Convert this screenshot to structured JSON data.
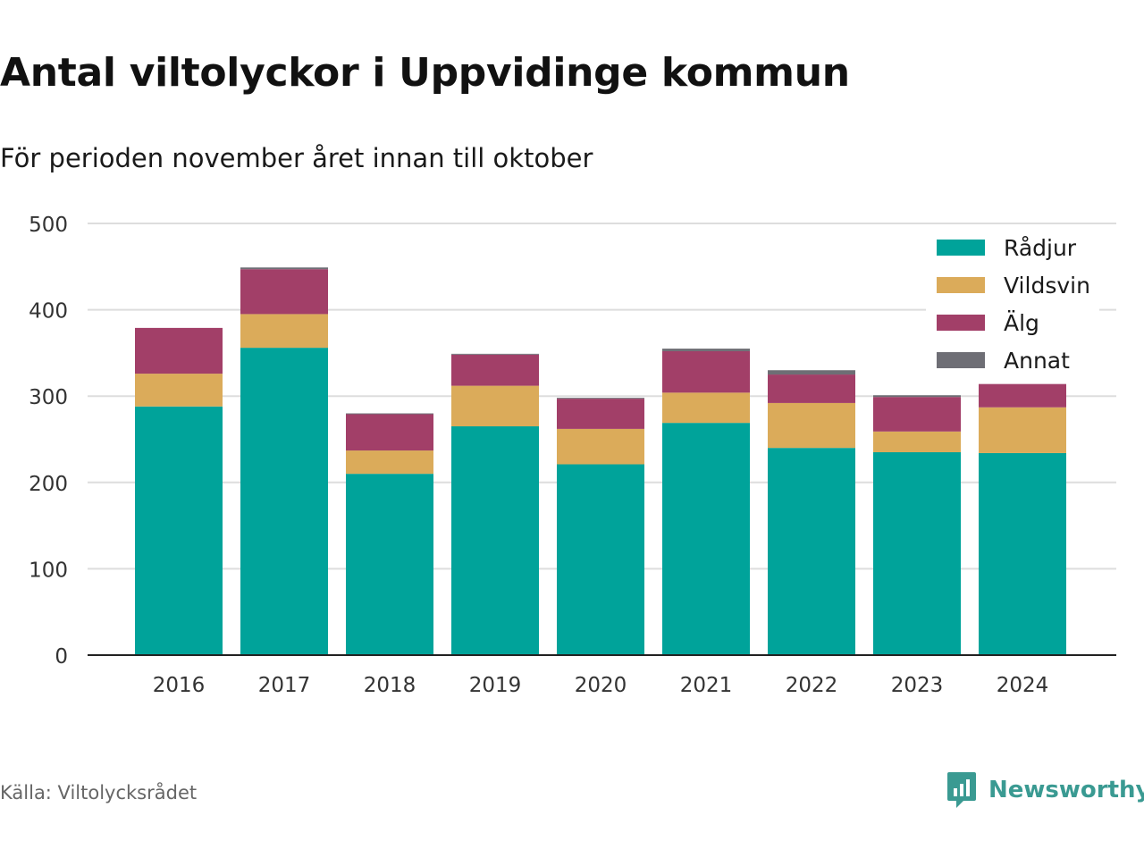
{
  "title": "Antal viltolyckor i Uppvidinge kommun",
  "subtitle": "För perioden november året innan till oktober",
  "source": "Källa: Viltolycksrådet",
  "brand": {
    "name": "Newsworthy",
    "icon": "newsworthy-logo-icon",
    "color": "#3a9a92"
  },
  "chart_data": {
    "type": "bar",
    "stacked": true,
    "categories": [
      "2016",
      "2017",
      "2018",
      "2019",
      "2020",
      "2021",
      "2022",
      "2023",
      "2024"
    ],
    "series": [
      {
        "name": "Rådjur",
        "color": "#00a39a",
        "values": [
          288,
          356,
          210,
          265,
          221,
          269,
          240,
          235,
          234
        ]
      },
      {
        "name": "Vildsvin",
        "color": "#dbab5a",
        "values": [
          38,
          39,
          27,
          47,
          41,
          35,
          52,
          24,
          53
        ]
      },
      {
        "name": "Älg",
        "color": "#a23f68",
        "values": [
          53,
          52,
          42,
          36,
          35,
          48,
          33,
          40,
          27
        ]
      },
      {
        "name": "Annat",
        "color": "#6e6e75",
        "values": [
          0,
          2,
          1,
          1,
          1,
          3,
          5,
          2,
          0
        ]
      }
    ],
    "ylim": [
      0,
      500
    ],
    "yticks": [
      0,
      100,
      200,
      300,
      400,
      500
    ],
    "grid": true,
    "legend": "top-right"
  }
}
